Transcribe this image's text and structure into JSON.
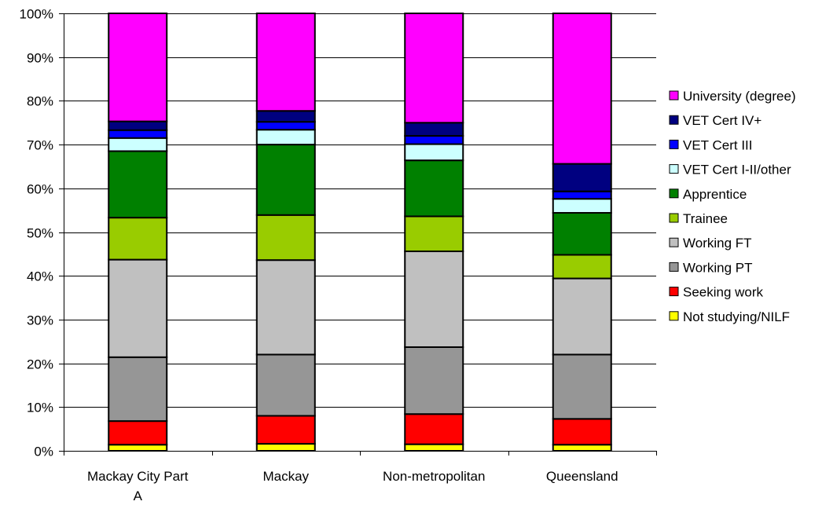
{
  "chart_data": {
    "type": "bar",
    "stacked": true,
    "percent": true,
    "categories": [
      "Mackay City Part A",
      "Mackay",
      "Non-metropolitan",
      "Queensland"
    ],
    "category_label_lines": [
      [
        "Mackay City Part",
        "A"
      ],
      [
        "Mackay"
      ],
      [
        "Non-metropolitan"
      ],
      [
        "Queensland"
      ]
    ],
    "ylim": [
      0,
      100
    ],
    "yticks": [
      "0%",
      "10%",
      "20%",
      "30%",
      "40%",
      "50%",
      "60%",
      "70%",
      "80%",
      "90%",
      "100%"
    ],
    "grid": true,
    "legend_position": "right",
    "series": [
      {
        "name": "Not studying/NILF",
        "color": "#FFFF00",
        "values": [
          1.4,
          1.6,
          1.5,
          1.4
        ]
      },
      {
        "name": "Seeking work",
        "color": "#FF0000",
        "values": [
          5.4,
          6.4,
          6.9,
          5.9
        ]
      },
      {
        "name": "Working PT",
        "color": "#969696",
        "values": [
          14.6,
          14.0,
          15.3,
          14.7
        ]
      },
      {
        "name": "Working FT",
        "color": "#C0C0C0",
        "values": [
          22.3,
          21.6,
          21.9,
          17.4
        ]
      },
      {
        "name": "Trainee",
        "color": "#99CC00",
        "values": [
          9.6,
          10.3,
          8.0,
          5.4
        ]
      },
      {
        "name": "Apprentice",
        "color": "#008000",
        "values": [
          15.2,
          16.1,
          12.8,
          9.6
        ]
      },
      {
        "name": "VET Cert I-II/other",
        "color": "#CCFFFF",
        "values": [
          3.0,
          3.4,
          3.7,
          3.2
        ]
      },
      {
        "name": "VET Cert III",
        "color": "#0000FF",
        "values": [
          1.8,
          1.8,
          1.9,
          1.7
        ]
      },
      {
        "name": "VET Cert IV+",
        "color": "#000080",
        "values": [
          2.0,
          2.5,
          3.0,
          6.3
        ]
      },
      {
        "name": "University (degree)",
        "color": "#FF00FF",
        "values": [
          24.7,
          22.3,
          25.0,
          34.4
        ]
      }
    ]
  }
}
